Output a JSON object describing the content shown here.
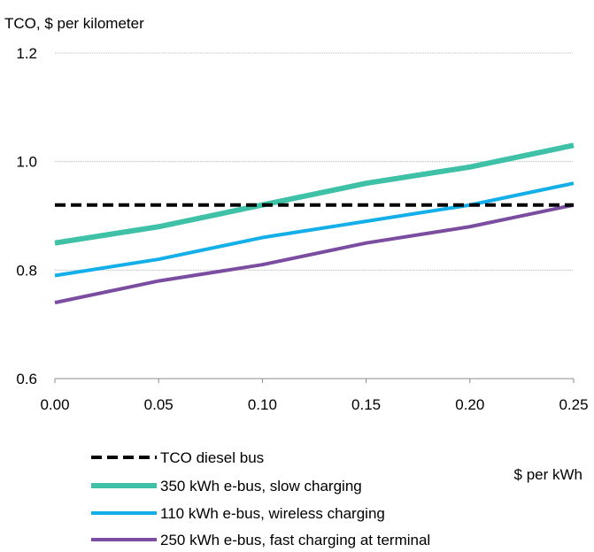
{
  "chart_data": {
    "type": "line",
    "title": "TCO, $ per kilometer",
    "xlabel": "$ per kWh",
    "ylabel": "",
    "x": [
      0.0,
      0.05,
      0.1,
      0.15,
      0.2,
      0.25
    ],
    "x_tick_labels": [
      "0.00",
      "0.05",
      "0.10",
      "0.15",
      "0.20",
      "0.25"
    ],
    "y_ticks": [
      0.6,
      0.8,
      1.0,
      1.2
    ],
    "y_tick_labels": [
      "0.6",
      "0.8",
      "1.0",
      "1.2"
    ],
    "xlim": [
      0.0,
      0.25
    ],
    "ylim": [
      0.6,
      1.2
    ],
    "grid": "horizontal",
    "legend_position": "bottom",
    "series": [
      {
        "name": "TCO diesel bus",
        "values": [
          0.92,
          0.92,
          0.92,
          0.92,
          0.92,
          0.92
        ],
        "color": "#000000",
        "style": "dashed"
      },
      {
        "name": "350 kWh e-bus, slow charging",
        "values": [
          0.85,
          0.88,
          0.92,
          0.96,
          0.99,
          1.03
        ],
        "color": "#3EC1A7",
        "style": "solid"
      },
      {
        "name": "110 kWh e-bus, wireless charging",
        "values": [
          0.79,
          0.82,
          0.86,
          0.89,
          0.92,
          0.96
        ],
        "color": "#14AEE8",
        "style": "solid"
      },
      {
        "name": "250 kWh e-bus, fast charging at terminal",
        "values": [
          0.74,
          0.78,
          0.81,
          0.85,
          0.88,
          0.92
        ],
        "color": "#7B4DA1",
        "style": "solid"
      }
    ]
  }
}
